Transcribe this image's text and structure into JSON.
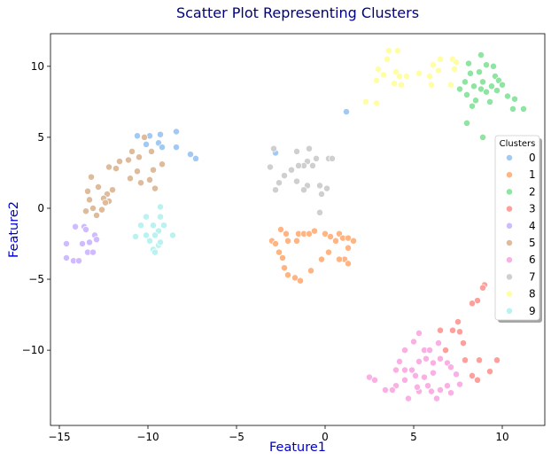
{
  "chart_data": {
    "type": "scatter",
    "title": "Scatter Plot Representing Clusters",
    "xlabel": "Feature1",
    "ylabel": "Feature2",
    "xlim": [
      -15.5,
      12.4
    ],
    "ylim": [
      -15.3,
      12.3
    ],
    "xticks": [
      -15,
      -10,
      -5,
      0,
      5,
      10
    ],
    "yticks": [
      -10,
      -5,
      0,
      5,
      10
    ],
    "xtick_labels": [
      "−15",
      "−10",
      "−5",
      "0",
      "5",
      "10"
    ],
    "ytick_labels": [
      "−10",
      "−5",
      "0",
      "5",
      "10"
    ],
    "grid": false,
    "legend": {
      "title": "Clusters",
      "position": "right"
    },
    "colors": {
      "title": "#000080",
      "axis_label": "#0000cd",
      "0": "#a1c9f4",
      "1": "#ffb482",
      "2": "#8de5a1",
      "3": "#ff9f9b",
      "4": "#d0bbff",
      "5": "#debb9b",
      "6": "#fab0e4",
      "7": "#cfcfcf",
      "8": "#fffea3",
      "9": "#b9f2f0"
    },
    "series": [
      {
        "name": "0",
        "points": [
          [
            -10.6,
            5.1
          ],
          [
            -9.9,
            5.1
          ],
          [
            -9.3,
            5.2
          ],
          [
            -8.4,
            5.4
          ],
          [
            -9.4,
            4.6
          ],
          [
            -9.2,
            4.3
          ],
          [
            -8.4,
            4.3
          ],
          [
            -7.6,
            3.8
          ],
          [
            -7.3,
            3.5
          ],
          [
            -10.1,
            4.5
          ],
          [
            1.2,
            6.8
          ],
          [
            -2.8,
            3.9
          ]
        ]
      },
      {
        "name": "1",
        "points": [
          [
            -3.0,
            -2.3
          ],
          [
            -2.5,
            -1.5
          ],
          [
            -2.2,
            -1.8
          ],
          [
            -1.5,
            -1.8
          ],
          [
            -1.2,
            -1.8
          ],
          [
            -2.1,
            -2.3
          ],
          [
            -1.6,
            -2.3
          ],
          [
            -0.9,
            -1.8
          ],
          [
            -0.6,
            -1.6
          ],
          [
            -2.8,
            -2.5
          ],
          [
            -2.6,
            -3.1
          ],
          [
            -2.4,
            -3.5
          ],
          [
            -2.3,
            -4.2
          ],
          [
            -2.1,
            -4.7
          ],
          [
            -1.7,
            -4.9
          ],
          [
            -1.4,
            -5.1
          ],
          [
            -0.8,
            -4.4
          ],
          [
            0.0,
            -1.8
          ],
          [
            0.3,
            -2.0
          ],
          [
            0.6,
            -2.3
          ],
          [
            0.8,
            -1.8
          ],
          [
            1.0,
            -2.1
          ],
          [
            1.3,
            -2.1
          ],
          [
            1.6,
            -2.3
          ],
          [
            1.3,
            -2.8
          ],
          [
            1.1,
            -3.6
          ],
          [
            0.8,
            -3.6
          ],
          [
            0.2,
            -3.1
          ],
          [
            1.3,
            -3.9
          ],
          [
            -0.2,
            -3.6
          ]
        ]
      },
      {
        "name": "2",
        "points": [
          [
            8.1,
            10.2
          ],
          [
            8.8,
            10.8
          ],
          [
            9.1,
            10.1
          ],
          [
            9.5,
            10.0
          ],
          [
            8.7,
            9.6
          ],
          [
            8.2,
            9.5
          ],
          [
            9.6,
            9.3
          ],
          [
            9.8,
            9.0
          ],
          [
            8.9,
            8.9
          ],
          [
            7.9,
            8.9
          ],
          [
            8.4,
            8.6
          ],
          [
            9.4,
            8.6
          ],
          [
            10.0,
            8.7
          ],
          [
            9.7,
            8.3
          ],
          [
            8.8,
            8.4
          ],
          [
            9.1,
            8.2
          ],
          [
            7.6,
            8.4
          ],
          [
            8.0,
            8.0
          ],
          [
            8.5,
            7.6
          ],
          [
            10.3,
            7.9
          ],
          [
            10.7,
            7.7
          ],
          [
            9.3,
            7.5
          ],
          [
            8.3,
            7.2
          ],
          [
            10.6,
            7.0
          ],
          [
            11.2,
            7.0
          ],
          [
            8.0,
            6.0
          ],
          [
            8.9,
            5.0
          ]
        ]
      },
      {
        "name": "3",
        "points": [
          [
            9.0,
            -5.4
          ],
          [
            8.9,
            -5.6
          ],
          [
            8.6,
            -6.5
          ],
          [
            8.3,
            -6.7
          ],
          [
            7.5,
            -8.0
          ],
          [
            7.2,
            -8.6
          ],
          [
            7.6,
            -8.7
          ],
          [
            6.5,
            -8.6
          ],
          [
            7.8,
            -9.5
          ],
          [
            6.8,
            -10.0
          ],
          [
            7.9,
            -10.7
          ],
          [
            8.7,
            -10.7
          ],
          [
            9.7,
            -10.7
          ],
          [
            8.3,
            -11.8
          ],
          [
            8.6,
            -12.1
          ],
          [
            9.3,
            -11.5
          ]
        ]
      },
      {
        "name": "4",
        "points": [
          [
            -14.1,
            -1.3
          ],
          [
            -13.6,
            -1.3
          ],
          [
            -13.5,
            -1.5
          ],
          [
            -13.0,
            -1.9
          ],
          [
            -12.9,
            -2.2
          ],
          [
            -14.6,
            -2.5
          ],
          [
            -13.7,
            -2.5
          ],
          [
            -13.3,
            -2.4
          ],
          [
            -13.4,
            -3.1
          ],
          [
            -13.1,
            -3.1
          ],
          [
            -14.6,
            -3.5
          ],
          [
            -14.2,
            -3.7
          ],
          [
            -13.9,
            -3.7
          ]
        ]
      },
      {
        "name": "5",
        "points": [
          [
            -10.2,
            5.0
          ],
          [
            -10.9,
            4.0
          ],
          [
            -9.8,
            4.0
          ],
          [
            -10.5,
            3.6
          ],
          [
            -11.1,
            3.4
          ],
          [
            -11.6,
            3.3
          ],
          [
            -9.2,
            3.1
          ],
          [
            -12.2,
            2.9
          ],
          [
            -11.8,
            2.8
          ],
          [
            -9.7,
            2.7
          ],
          [
            -10.6,
            2.6
          ],
          [
            -13.2,
            2.2
          ],
          [
            -11.0,
            2.1
          ],
          [
            -9.9,
            2.0
          ],
          [
            -10.4,
            1.8
          ],
          [
            -12.8,
            1.5
          ],
          [
            -12.0,
            1.3
          ],
          [
            -13.4,
            1.2
          ],
          [
            -9.6,
            1.4
          ],
          [
            -12.3,
            1.0
          ],
          [
            -12.5,
            0.7
          ],
          [
            -13.3,
            0.6
          ],
          [
            -12.2,
            0.5
          ],
          [
            -13.1,
            0.0
          ],
          [
            -13.5,
            -0.2
          ],
          [
            -12.6,
            -0.1
          ],
          [
            -12.9,
            -0.5
          ],
          [
            -12.4,
            0.4
          ]
        ]
      },
      {
        "name": "6",
        "points": [
          [
            5.3,
            -8.8
          ],
          [
            5.0,
            -9.4
          ],
          [
            4.5,
            -10.0
          ],
          [
            4.2,
            -10.8
          ],
          [
            4.0,
            -11.4
          ],
          [
            4.5,
            -11.4
          ],
          [
            4.9,
            -11.4
          ],
          [
            5.3,
            -10.8
          ],
          [
            5.6,
            -10.0
          ],
          [
            5.9,
            -10.0
          ],
          [
            5.7,
            -10.6
          ],
          [
            6.1,
            -10.9
          ],
          [
            6.4,
            -9.5
          ],
          [
            6.5,
            -10.6
          ],
          [
            6.1,
            -11.6
          ],
          [
            5.6,
            -11.9
          ],
          [
            6.9,
            -10.9
          ],
          [
            7.1,
            -11.2
          ],
          [
            7.4,
            -11.7
          ],
          [
            5.1,
            -11.8
          ],
          [
            4.5,
            -12.1
          ],
          [
            4.0,
            -12.5
          ],
          [
            3.8,
            -12.8
          ],
          [
            3.4,
            -12.8
          ],
          [
            2.5,
            -11.9
          ],
          [
            2.8,
            -12.1
          ],
          [
            4.7,
            -13.4
          ],
          [
            5.3,
            -12.9
          ],
          [
            5.8,
            -12.5
          ],
          [
            6.0,
            -12.9
          ],
          [
            6.5,
            -12.8
          ],
          [
            6.9,
            -12.5
          ],
          [
            7.1,
            -13.0
          ],
          [
            7.6,
            -12.4
          ],
          [
            5.2,
            -12.6
          ],
          [
            6.3,
            -13.4
          ]
        ]
      },
      {
        "name": "7",
        "points": [
          [
            -2.9,
            4.2
          ],
          [
            -1.6,
            4.0
          ],
          [
            -0.9,
            4.2
          ],
          [
            -0.5,
            3.5
          ],
          [
            -1.0,
            3.3
          ],
          [
            -1.2,
            3.0
          ],
          [
            -0.7,
            3.0
          ],
          [
            0.2,
            3.5
          ],
          [
            0.4,
            3.5
          ],
          [
            -1.5,
            3.0
          ],
          [
            -1.9,
            2.7
          ],
          [
            -3.1,
            2.9
          ],
          [
            -2.3,
            2.3
          ],
          [
            -1.6,
            1.9
          ],
          [
            -2.6,
            1.8
          ],
          [
            -0.3,
            1.6
          ],
          [
            -1.0,
            1.6
          ],
          [
            -2.8,
            1.3
          ],
          [
            -1.2,
            1.3
          ],
          [
            0.1,
            1.4
          ],
          [
            -0.2,
            1.0
          ],
          [
            -0.3,
            -0.3
          ]
        ]
      },
      {
        "name": "8",
        "points": [
          [
            3.6,
            11.1
          ],
          [
            4.1,
            11.1
          ],
          [
            6.5,
            10.5
          ],
          [
            7.2,
            10.5
          ],
          [
            3.5,
            10.5
          ],
          [
            6.1,
            10.1
          ],
          [
            6.4,
            9.7
          ],
          [
            3.0,
            9.8
          ],
          [
            4.0,
            9.6
          ],
          [
            3.3,
            9.4
          ],
          [
            4.2,
            9.3
          ],
          [
            4.6,
            9.3
          ],
          [
            5.3,
            9.5
          ],
          [
            5.9,
            9.3
          ],
          [
            7.3,
            9.8
          ],
          [
            2.9,
            9.0
          ],
          [
            3.9,
            8.8
          ],
          [
            4.3,
            8.7
          ],
          [
            6.0,
            8.7
          ],
          [
            7.1,
            8.7
          ],
          [
            2.3,
            7.5
          ],
          [
            2.9,
            7.4
          ],
          [
            7.4,
            10.3
          ]
        ]
      },
      {
        "name": "9",
        "points": [
          [
            -9.3,
            0.1
          ],
          [
            -10.1,
            -0.6
          ],
          [
            -9.3,
            -0.6
          ],
          [
            -10.4,
            -1.2
          ],
          [
            -9.7,
            -1.2
          ],
          [
            -9.1,
            -1.2
          ],
          [
            -9.4,
            -1.6
          ],
          [
            -10.1,
            -1.9
          ],
          [
            -9.6,
            -1.9
          ],
          [
            -8.6,
            -1.9
          ],
          [
            -10.7,
            -2.0
          ],
          [
            -9.9,
            -2.3
          ],
          [
            -9.4,
            -2.6
          ],
          [
            -9.7,
            -2.9
          ],
          [
            -9.6,
            -3.1
          ],
          [
            -9.3,
            -2.4
          ]
        ]
      }
    ]
  }
}
